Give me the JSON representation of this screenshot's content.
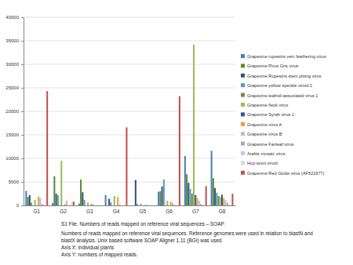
{
  "chart_data": {
    "type": "bar",
    "categories": [
      "G1",
      "G2",
      "G3",
      "G4",
      "G5",
      "G6",
      "G7",
      "G8"
    ],
    "series": [
      {
        "name": "Grapevine rupestris vein feathering virus",
        "color": "#4a7ebb",
        "values": [
          3100,
          500,
          400,
          2200,
          0,
          2900,
          10500,
          11600
        ]
      },
      {
        "name": "Grapevine Pinot Gris virus",
        "color": "#5c8a2f",
        "values": [
          1800,
          6200,
          5500,
          0,
          0,
          3000,
          6600,
          5800
        ]
      },
      {
        "name": "Grapevine Rupestris stem pitting virus",
        "color": "#3b4f7a",
        "values": [
          2200,
          2500,
          2800,
          1400,
          5400,
          4000,
          4800,
          3700
        ]
      },
      {
        "name": "Grapevine yellow speckle viroid 1",
        "color": "#4f9fb5",
        "values": [
          600,
          2200,
          1200,
          700,
          300,
          5500,
          3500,
          2700
        ]
      },
      {
        "name": "Grapevine leafroll-associated virus 1",
        "color": "#6e8f3e",
        "values": [
          0,
          0,
          0,
          0,
          0,
          0,
          2500,
          2000
        ]
      },
      {
        "name": "Grapevine fleck virus",
        "color": "#9bbb59",
        "values": [
          1200,
          9500,
          600,
          2000,
          400,
          1000,
          34200,
          1800
        ]
      },
      {
        "name": "Grapevine Syrah virus 1",
        "color": "#2f5597",
        "values": [
          0,
          0,
          0,
          0,
          0,
          0,
          2200,
          2300
        ]
      },
      {
        "name": "Grapevine virus A",
        "color": "#f79646",
        "values": [
          1900,
          300,
          400,
          1800,
          0,
          800,
          1500,
          1500
        ]
      },
      {
        "name": "Grapevine virus B",
        "color": "#bfbfbf",
        "values": [
          1600,
          1000,
          300,
          200,
          200,
          500,
          1000,
          1200
        ]
      },
      {
        "name": "Grapevine Fanleaf virus",
        "color": "#a6a6d8",
        "values": [
          300,
          0,
          0,
          0,
          0,
          100,
          300,
          600
        ]
      },
      {
        "name": "Arabis mosaic virus",
        "color": "#b9cde5",
        "values": [
          200,
          0,
          0,
          0,
          0,
          100,
          200,
          200
        ]
      },
      {
        "name": "Hop stunt viroid",
        "color": "#d9d9d9",
        "values": [
          0,
          800,
          200,
          0,
          0,
          0,
          0,
          0
        ]
      },
      {
        "name": "Grapevine Red Globe virus (AF521977)",
        "color": "#c0504d",
        "values": [
          24300,
          800,
          0,
          16600,
          0,
          23200,
          4100,
          2500
        ]
      }
    ],
    "ylim": [
      0,
      40000
    ],
    "yticks": [
      0,
      5000,
      10000,
      15000,
      20000,
      25000,
      30000,
      35000,
      40000
    ],
    "grid": true,
    "legend": "right",
    "annotations": [
      "S1 File. Numbers of reads mapped on reference viral sequences – SOAP.",
      "Numbers of reads mapped on reference viral sequences. Reference genomes were used in relation to blastN and",
      "blastX analysis. Unix based software SOAP Aligner 1.11 (BGI) was used.",
      "Axis X: individual plants",
      "Axis Y: numbers of mapped reads."
    ]
  }
}
